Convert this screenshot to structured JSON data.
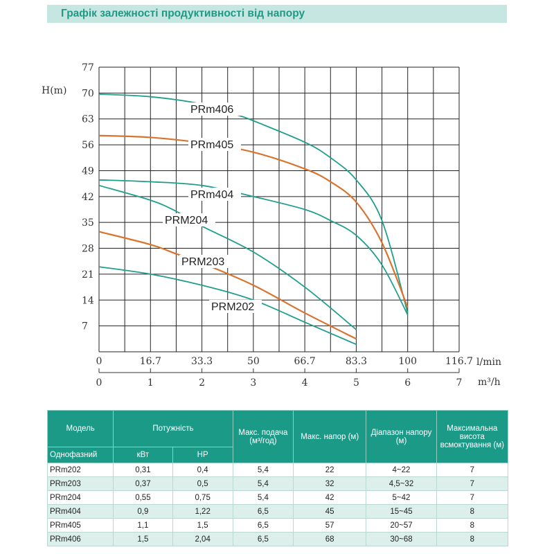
{
  "title": "Графік залежності продуктивності від напору",
  "chart_data": {
    "type": "line",
    "ylabel": "H(m)",
    "xlabel_top": "l/min",
    "xlabel_bottom": "m³/h",
    "ylim": [
      0,
      77
    ],
    "xlim": [
      0,
      7
    ],
    "yticks": [
      "7",
      "14",
      "21",
      "28",
      "35",
      "42",
      "49",
      "56",
      "63",
      "70",
      "77"
    ],
    "xticks_lmin": [
      "0",
      "16.7",
      "33.3",
      "50",
      "66.7",
      "83.3",
      "100",
      "116.7"
    ],
    "xticks_m3h": [
      "0",
      "1",
      "2",
      "3",
      "4",
      "5",
      "6",
      "7"
    ],
    "grid": true,
    "colors": {
      "teal": "#1f9e8c",
      "orange": "#d9742e"
    },
    "series": [
      {
        "name": "PRm406",
        "color": "teal",
        "points": [
          [
            0,
            69.7
          ],
          [
            1,
            69
          ],
          [
            2,
            67
          ],
          [
            2.7,
            64
          ],
          [
            3,
            62.5
          ],
          [
            4,
            56.7
          ],
          [
            4.5,
            52.5
          ],
          [
            5,
            46.5
          ],
          [
            5.5,
            35.5
          ],
          [
            6,
            10.5
          ]
        ]
      },
      {
        "name": "PRm405",
        "color": "orange",
        "points": [
          [
            0,
            58.5
          ],
          [
            1,
            58
          ],
          [
            2,
            56.5
          ],
          [
            3,
            54
          ],
          [
            4,
            49.5
          ],
          [
            4.5,
            46
          ],
          [
            5,
            40.5
          ],
          [
            5.5,
            29.5
          ],
          [
            6,
            12
          ]
        ]
      },
      {
        "name": "PRm404",
        "color": "teal",
        "points": [
          [
            0,
            46.5
          ],
          [
            1,
            46
          ],
          [
            2,
            45
          ],
          [
            3,
            42
          ],
          [
            4,
            38.5
          ],
          [
            4.5,
            35.5
          ],
          [
            5,
            31.5
          ],
          [
            5.5,
            23.5
          ],
          [
            6,
            10
          ]
        ]
      },
      {
        "name": "PRM204",
        "color": "teal",
        "points": [
          [
            0,
            45
          ],
          [
            1,
            41
          ],
          [
            1.5,
            38
          ],
          [
            2,
            34
          ],
          [
            3,
            27
          ],
          [
            4,
            17.5
          ],
          [
            5,
            6
          ]
        ]
      },
      {
        "name": "PRM203",
        "color": "orange",
        "points": [
          [
            0,
            32.5
          ],
          [
            1,
            29
          ],
          [
            1.5,
            26.5
          ],
          [
            2,
            24
          ],
          [
            3,
            18
          ],
          [
            4,
            10.5
          ],
          [
            5,
            3.5
          ]
        ]
      },
      {
        "name": "PRM202",
        "color": "teal",
        "points": [
          [
            0,
            23
          ],
          [
            1,
            21
          ],
          [
            2,
            18
          ],
          [
            3,
            14
          ],
          [
            4,
            8
          ],
          [
            5,
            2
          ]
        ]
      }
    ]
  },
  "table": {
    "headers": {
      "model": "Модель",
      "power": "Потужність",
      "flow": "Макс. подача (м³/год)",
      "head": "Макс. напор (м)",
      "range": "Діапазон напору (м)",
      "suction": "Максимальна висота всмоктування (м)",
      "phase": "Однофазний",
      "kw": "кВт",
      "hp": "HP"
    },
    "rows": [
      [
        "PRm202",
        "0,31",
        "0,4",
        "5,4",
        "22",
        "4~22",
        "7"
      ],
      [
        "PRm203",
        "0,37",
        "0,5",
        "5,4",
        "32",
        "4,5~32",
        "7"
      ],
      [
        "PRm204",
        "0,55",
        "0,75",
        "5,4",
        "42",
        "5~42",
        "7"
      ],
      [
        "PRm404",
        "0,9",
        "1,22",
        "6,5",
        "45",
        "15~45",
        "8"
      ],
      [
        "PRm405",
        "1,1",
        "1,5",
        "6,5",
        "57",
        "20~57",
        "8"
      ],
      [
        "PRm406",
        "1,5",
        "2,04",
        "6,5",
        "68",
        "30~68",
        "8"
      ]
    ]
  }
}
